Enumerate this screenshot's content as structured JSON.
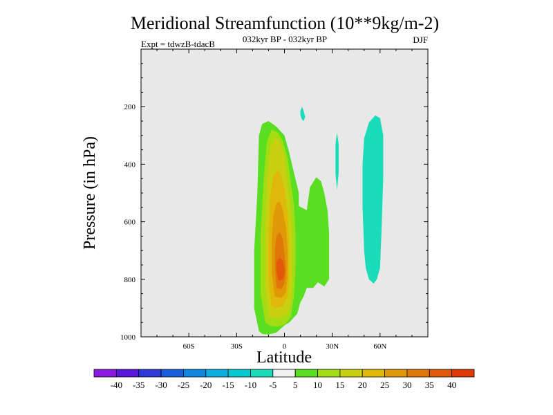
{
  "chart_data": {
    "type": "contour",
    "title": "Meridional Streamfunction (10**9kg/m-2)",
    "subtitle": "032kyr BP - 032kyr BP",
    "left_note": "Expt = tdwzB-tdacB",
    "right_note": "DJF",
    "xlabel": "Latitude",
    "ylabel": "Pressure (in hPa)",
    "xlim": [
      -90,
      90
    ],
    "ylim": [
      1000,
      0
    ],
    "x_ticks": [
      {
        "value": -60,
        "label": "60S"
      },
      {
        "value": -30,
        "label": "30S"
      },
      {
        "value": 0,
        "label": "0"
      },
      {
        "value": 30,
        "label": "30N"
      },
      {
        "value": 60,
        "label": "60N"
      }
    ],
    "y_ticks": [
      {
        "value": 200,
        "label": "200"
      },
      {
        "value": 400,
        "label": "400"
      },
      {
        "value": 600,
        "label": "600"
      },
      {
        "value": 800,
        "label": "800"
      },
      {
        "value": 1000,
        "label": "1000"
      }
    ],
    "background_color": "#e8e8e8",
    "levels": [
      -40,
      -35,
      -30,
      -25,
      -20,
      -15,
      -10,
      -5,
      5,
      10,
      15,
      20,
      25,
      30,
      35,
      40
    ],
    "colorbar": {
      "colors": [
        "#8a1ae0",
        "#5a18d8",
        "#2b3ad8",
        "#1a5ee0",
        "#0f86e0",
        "#0aaee0",
        "#06c8d0",
        "#1adcb8",
        "#f0f0f0",
        "#5ade22",
        "#a2dc12",
        "#c8d010",
        "#e0b808",
        "#e09808",
        "#e07808",
        "#e05808",
        "#e03808"
      ],
      "labels": [
        "-40",
        "-35",
        "-30",
        "-25",
        "-20",
        "-15",
        "-10",
        "-5",
        "5",
        "10",
        "15",
        "20",
        "25",
        "30",
        "35",
        "40"
      ]
    },
    "regions": [
      {
        "name": "positive-cell-contour-5",
        "value": 5,
        "color": "#5ade22",
        "points": [
          [
            -16,
            980
          ],
          [
            -19,
            900
          ],
          [
            -19,
            700
          ],
          [
            -17,
            500
          ],
          [
            -16,
            300
          ],
          [
            -14,
            260
          ],
          [
            -10,
            250
          ],
          [
            -5,
            270
          ],
          [
            0,
            300
          ],
          [
            3,
            360
          ],
          [
            6,
            430
          ],
          [
            9,
            500
          ],
          [
            9,
            545
          ],
          [
            14,
            560
          ],
          [
            16,
            480
          ],
          [
            20,
            445
          ],
          [
            23,
            460
          ],
          [
            25,
            500
          ],
          [
            27,
            560
          ],
          [
            28,
            640
          ],
          [
            28,
            800
          ],
          [
            25,
            825
          ],
          [
            21,
            810
          ],
          [
            18,
            830
          ],
          [
            14,
            830
          ],
          [
            12,
            860
          ],
          [
            10,
            880
          ],
          [
            8,
            920
          ],
          [
            3,
            950
          ],
          [
            0,
            960
          ],
          [
            -5,
            985
          ],
          [
            -10,
            992
          ],
          [
            -14,
            990
          ]
        ]
      },
      {
        "name": "positive-cell-contour-10",
        "value": 10,
        "color": "#a2dc12",
        "points": [
          [
            -12,
            950
          ],
          [
            -15,
            850
          ],
          [
            -15,
            650
          ],
          [
            -13,
            450
          ],
          [
            -11,
            320
          ],
          [
            -8,
            280
          ],
          [
            -4,
            290
          ],
          [
            -1,
            320
          ],
          [
            2,
            380
          ],
          [
            4,
            460
          ],
          [
            6,
            540
          ],
          [
            7,
            640
          ],
          [
            7,
            760
          ],
          [
            6,
            860
          ],
          [
            4,
            930
          ],
          [
            1,
            955
          ],
          [
            -4,
            965
          ],
          [
            -9,
            962
          ]
        ]
      },
      {
        "name": "positive-cell-contour-15",
        "value": 15,
        "color": "#c8d010",
        "points": [
          [
            -10,
            930
          ],
          [
            -12,
            830
          ],
          [
            -12,
            650
          ],
          [
            -11,
            470
          ],
          [
            -9,
            340
          ],
          [
            -6,
            305
          ],
          [
            -3,
            320
          ],
          [
            0,
            370
          ],
          [
            2,
            460
          ],
          [
            4,
            560
          ],
          [
            5,
            680
          ],
          [
            5,
            790
          ],
          [
            4,
            880
          ],
          [
            2,
            920
          ],
          [
            -3,
            935
          ],
          [
            -7,
            935
          ]
        ]
      },
      {
        "name": "positive-cell-contour-20",
        "value": 20,
        "color": "#e0b808",
        "points": [
          [
            -8,
            895
          ],
          [
            -10,
            800
          ],
          [
            -10,
            650
          ],
          [
            -9,
            520
          ],
          [
            -7,
            440
          ],
          [
            -4,
            420
          ],
          [
            -2,
            440
          ],
          [
            0,
            490
          ],
          [
            2,
            570
          ],
          [
            3,
            680
          ],
          [
            3,
            790
          ],
          [
            2,
            860
          ],
          [
            -1,
            895
          ],
          [
            -5,
            900
          ]
        ]
      },
      {
        "name": "positive-cell-contour-25",
        "value": 25,
        "color": "#e09808",
        "points": [
          [
            -6,
            860
          ],
          [
            -8,
            780
          ],
          [
            -8,
            660
          ],
          [
            -7,
            580
          ],
          [
            -5,
            535
          ],
          [
            -3,
            530
          ],
          [
            -1,
            560
          ],
          [
            1,
            620
          ],
          [
            2,
            700
          ],
          [
            2,
            790
          ],
          [
            1,
            845
          ],
          [
            -2,
            865
          ]
        ]
      },
      {
        "name": "positive-cell-contour-30",
        "value": 30,
        "color": "#e07808",
        "points": [
          [
            -5,
            830
          ],
          [
            -6,
            760
          ],
          [
            -6,
            690
          ],
          [
            -5,
            650
          ],
          [
            -3,
            635
          ],
          [
            -1,
            660
          ],
          [
            0,
            710
          ],
          [
            1,
            770
          ],
          [
            0,
            815
          ],
          [
            -2,
            835
          ]
        ]
      },
      {
        "name": "positive-cell-contour-35",
        "value": 35,
        "color": "#e05808",
        "points": [
          [
            -4,
            800
          ],
          [
            -5,
            770
          ],
          [
            -5,
            740
          ],
          [
            -3,
            725
          ],
          [
            -1,
            735
          ],
          [
            0,
            760
          ],
          [
            0,
            785
          ],
          [
            -1,
            800
          ],
          [
            -3,
            805
          ]
        ]
      },
      {
        "name": "negative-patch-upper",
        "value": -5,
        "color": "#1adcb8",
        "points": [
          [
            10,
            215
          ],
          [
            11,
            200
          ],
          [
            12,
            215
          ],
          [
            13,
            235
          ],
          [
            12,
            250
          ],
          [
            11,
            245
          ],
          [
            10,
            230
          ]
        ]
      },
      {
        "name": "negative-patch-thin",
        "value": -5,
        "color": "#1adcb8",
        "points": [
          [
            33,
            290
          ],
          [
            34,
            330
          ],
          [
            34,
            430
          ],
          [
            33,
            490
          ],
          [
            32,
            430
          ],
          [
            32,
            330
          ]
        ]
      },
      {
        "name": "negative-cell-north",
        "value": -5,
        "color": "#1adcb8",
        "points": [
          [
            50,
            310
          ],
          [
            53,
            255
          ],
          [
            57,
            230
          ],
          [
            60,
            240
          ],
          [
            62,
            300
          ],
          [
            62,
            450
          ],
          [
            61,
            620
          ],
          [
            60,
            760
          ],
          [
            58,
            800
          ],
          [
            56,
            815
          ],
          [
            53,
            800
          ],
          [
            51,
            760
          ],
          [
            50,
            700
          ],
          [
            49,
            550
          ],
          [
            49,
            400
          ]
        ]
      }
    ]
  }
}
